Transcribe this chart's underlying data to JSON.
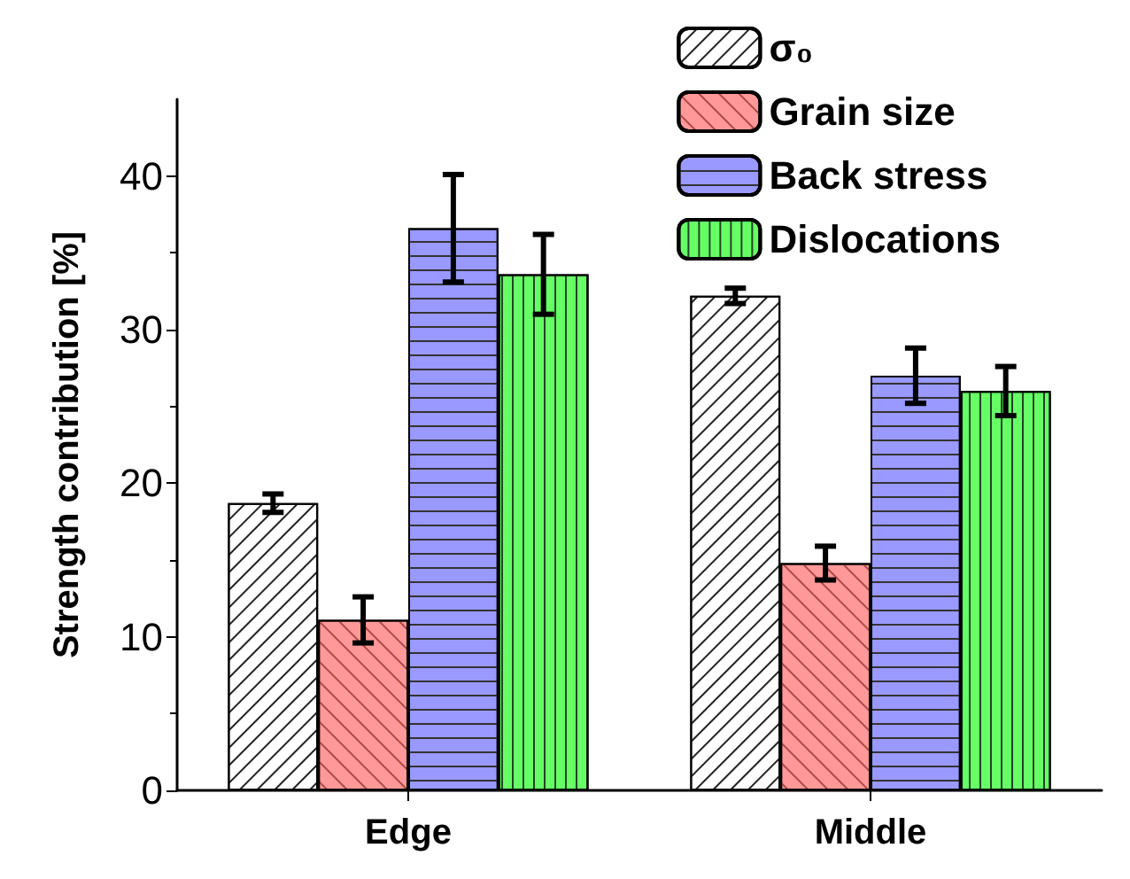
{
  "chart_data": {
    "type": "bar",
    "ylabel": "Strength contribution [%]",
    "categories": [
      "Edge",
      "Middle"
    ],
    "series": [
      {
        "name": "σ₀",
        "color": "#ffffff",
        "values": [
          18.7,
          32.2
        ],
        "errors": [
          0.6,
          0.5
        ]
      },
      {
        "name": "Grain size",
        "color": "#ff9999",
        "values": [
          11.1,
          14.8
        ],
        "errors": [
          1.5,
          1.1
        ]
      },
      {
        "name": "Back stress",
        "color": "#9999ff",
        "values": [
          36.6,
          27.0
        ],
        "errors": [
          3.5,
          1.8
        ]
      },
      {
        "name": "Dislocations",
        "color": "#66ff66",
        "values": [
          33.6,
          26.0
        ],
        "errors": [
          2.6,
          1.6
        ]
      }
    ],
    "ylim": [
      0,
      45
    ],
    "yticks": [
      0,
      10,
      20,
      30,
      40
    ],
    "grid": false,
    "legend": "top right"
  }
}
